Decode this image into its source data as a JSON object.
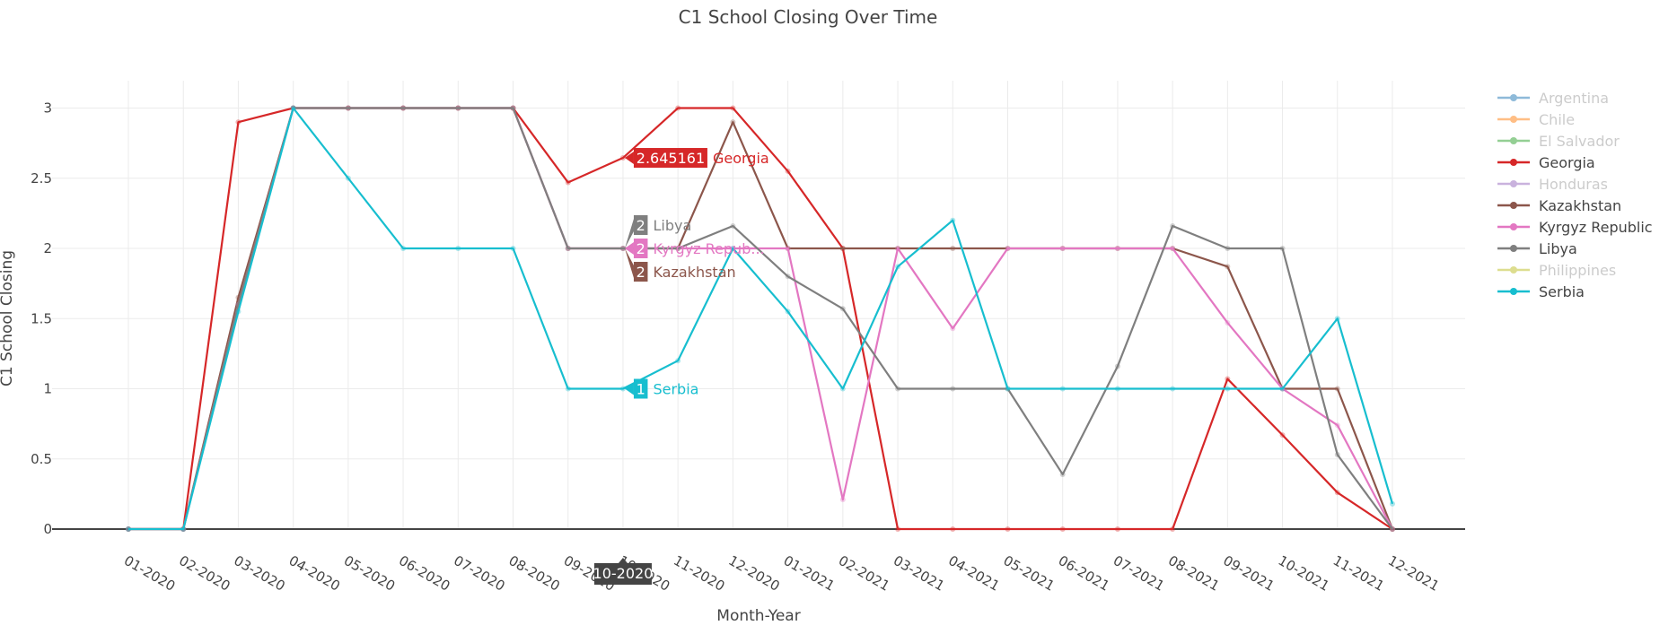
{
  "chart_data": {
    "type": "line",
    "title": "C1 School Closing Over Time",
    "xlabel": "Month-Year",
    "ylabel": "C1 School Closing",
    "x": [
      "01-2020",
      "02-2020",
      "03-2020",
      "04-2020",
      "05-2020",
      "06-2020",
      "07-2020",
      "08-2020",
      "09-2020",
      "10-2020",
      "11-2020",
      "12-2020",
      "01-2021",
      "02-2021",
      "03-2021",
      "04-2021",
      "05-2021",
      "06-2021",
      "07-2021",
      "08-2021",
      "09-2021",
      "10-2021",
      "11-2021",
      "12-2021"
    ],
    "ylim": [
      0,
      3.2
    ],
    "yticks": [
      0,
      0.5,
      1,
      1.5,
      2,
      2.5,
      3
    ],
    "ytick_labels": [
      "0",
      "0.5",
      "1",
      "1.5",
      "2",
      "2.5",
      "3"
    ],
    "grid": true,
    "legend_position": "right",
    "series": [
      {
        "name": "Argentina",
        "color": "#1f77b4",
        "visible": false,
        "values": [
          0,
          0,
          1.6,
          3,
          3,
          3,
          3,
          3,
          2,
          2,
          2,
          2.9,
          2,
          2,
          2,
          2,
          2,
          2,
          2,
          2,
          1.87,
          1,
          1,
          0
        ]
      },
      {
        "name": "Chile",
        "color": "#ff7f0e",
        "visible": false,
        "values": [
          0,
          0,
          1.6,
          3,
          3,
          3,
          3,
          3,
          2,
          2,
          2,
          2.9,
          2,
          2,
          2,
          2,
          2,
          2,
          2,
          2,
          1.87,
          1,
          1,
          0
        ]
      },
      {
        "name": "El Salvador",
        "color": "#2ca02c",
        "visible": false,
        "values": [
          0,
          0,
          1.6,
          3,
          3,
          3,
          3,
          3,
          2,
          2,
          2,
          2.9,
          2,
          2,
          2,
          2,
          2,
          2,
          2,
          2,
          1.87,
          1,
          1,
          0
        ]
      },
      {
        "name": "Georgia",
        "color": "#d62728",
        "visible": true,
        "values": [
          0,
          0,
          2.9,
          3,
          3,
          3,
          3,
          3,
          2.47,
          2.645161,
          3,
          3,
          2.55,
          2,
          0,
          0,
          0,
          0,
          0,
          0,
          1.07,
          0.67,
          0.26,
          0
        ]
      },
      {
        "name": "Honduras",
        "color": "#9467bd",
        "visible": false,
        "values": [
          0,
          0,
          1.6,
          3,
          3,
          3,
          3,
          3,
          2,
          2,
          2,
          2.9,
          2,
          2,
          2,
          2,
          2,
          2,
          2,
          2,
          1.87,
          1,
          1,
          0
        ]
      },
      {
        "name": "Kazakhstan",
        "color": "#8c564b",
        "visible": true,
        "values": [
          0,
          0,
          1.65,
          3,
          3,
          3,
          3,
          3,
          2,
          2,
          2,
          2.9,
          2,
          2,
          2,
          2,
          2,
          2,
          2,
          2,
          1.87,
          1,
          1,
          0
        ]
      },
      {
        "name": "Kyrgyz Republic",
        "color": "#e377c2",
        "visible": true,
        "values": [
          0,
          0,
          1.6,
          3,
          3,
          3,
          3,
          3,
          2,
          2,
          2,
          2,
          2,
          0.21,
          2,
          1.43,
          2,
          2,
          2,
          2,
          1.47,
          1,
          0.74,
          0
        ]
      },
      {
        "name": "Libya",
        "color": "#7f7f7f",
        "visible": true,
        "values": [
          0,
          0,
          1.6,
          3,
          3,
          3,
          3,
          3,
          2,
          2,
          2,
          2.16,
          1.8,
          1.57,
          1,
          1,
          1,
          0.39,
          1.16,
          2.16,
          2,
          2,
          0.53,
          0
        ]
      },
      {
        "name": "Philippines",
        "color": "#bcbd22",
        "visible": false,
        "values": [
          0,
          0,
          1.6,
          3,
          3,
          3,
          3,
          3,
          2,
          2,
          2,
          2.9,
          2,
          2,
          2,
          2,
          2,
          2,
          2,
          2,
          1.87,
          1,
          1,
          0
        ]
      },
      {
        "name": "Serbia",
        "color": "#17becf",
        "visible": true,
        "values": [
          0,
          0,
          1.55,
          3,
          2.5,
          2,
          2,
          2,
          1,
          1,
          1.2,
          2,
          1.55,
          1,
          1.87,
          2.2,
          1,
          1,
          1,
          1,
          1,
          1,
          1.5,
          0.18
        ]
      }
    ],
    "hover": {
      "x_label": "10-2020",
      "labels": [
        {
          "series": "Georgia",
          "value_text": "2.645161",
          "name_text": "Georgia",
          "color": "#d62728"
        },
        {
          "series": "Libya",
          "value_text": "2",
          "name_text": "Libya",
          "color": "#7f7f7f"
        },
        {
          "series": "Kyrgyz Republic",
          "value_text": "2",
          "name_text": "Kyrgyz Repub...",
          "color": "#e377c2"
        },
        {
          "series": "Kazakhstan",
          "value_text": "2",
          "name_text": "Kazakhstan",
          "color": "#8c564b"
        },
        {
          "series": "Serbia",
          "value_text": "1",
          "name_text": "Serbia",
          "color": "#17becf"
        }
      ]
    }
  }
}
